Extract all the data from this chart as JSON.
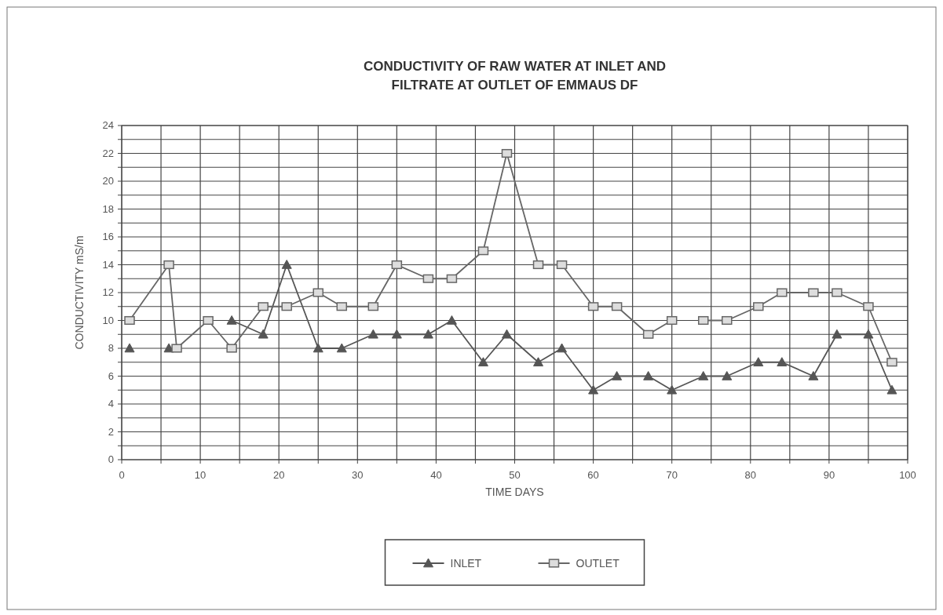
{
  "chart_data": {
    "type": "line",
    "title": "CONDUCTIVITY OF RAW WATER AT INLET AND\nFILTRATE AT OUTLET OF EMMAUS DF",
    "xlabel": "TIME DAYS",
    "ylabel": "CONDUCTIVITY mS/m",
    "xlim": [
      0,
      100
    ],
    "ylim": [
      0,
      24
    ],
    "xticks": [
      0,
      {
        "value": 5,
        "label": null
      },
      10,
      {
        "value": 15,
        "label": null
      },
      20,
      {
        "value": 25,
        "label": null
      },
      30,
      {
        "value": 35,
        "label": null
      },
      40,
      {
        "value": 45,
        "label": null
      },
      50,
      {
        "value": 55,
        "label": null
      },
      60,
      {
        "value": 65,
        "label": null
      },
      70,
      {
        "value": 75,
        "label": null
      },
      80,
      {
        "value": 85,
        "label": null
      },
      90,
      {
        "value": 95,
        "label": null
      },
      100
    ],
    "yticks": [
      0,
      {
        "value": 1,
        "label": null
      },
      2,
      {
        "value": 3,
        "label": null
      },
      4,
      {
        "value": 5,
        "label": null
      },
      6,
      {
        "value": 7,
        "label": null
      },
      8,
      {
        "value": 9,
        "label": null
      },
      10,
      {
        "value": 11,
        "label": null
      },
      12,
      {
        "value": 13,
        "label": null
      },
      14,
      {
        "value": 15,
        "label": null
      },
      16,
      {
        "value": 17,
        "label": null
      },
      18,
      {
        "value": 19,
        "label": null
      },
      20,
      {
        "value": 21,
        "label": null
      },
      22,
      {
        "value": 23,
        "label": null
      },
      24
    ],
    "grid": true,
    "legend": "bottom",
    "line_style": "solid",
    "series": [
      {
        "name": "INLET",
        "color": "#555555",
        "marker": "triangle",
        "x": [
          1,
          3,
          6,
          10,
          14,
          18,
          21,
          25,
          28,
          32,
          35,
          39,
          42,
          46,
          49,
          53,
          56,
          60,
          63,
          67,
          70,
          74,
          77,
          81,
          84,
          88,
          91,
          95,
          98
        ],
        "values": [
          8,
          null,
          8,
          null,
          10,
          9,
          14,
          8,
          8,
          9,
          9,
          9,
          10,
          7,
          9,
          7,
          8,
          5,
          6,
          6,
          5,
          6,
          6,
          7,
          7,
          6,
          9,
          9,
          5
        ]
      },
      {
        "name": "OUTLET",
        "color": "#666666",
        "marker": "square",
        "x": [
          1,
          6,
          7,
          11,
          14,
          18,
          21,
          25,
          28,
          32,
          35,
          39,
          42,
          46,
          49,
          53,
          56,
          60,
          63,
          67,
          70,
          72,
          74,
          77,
          81,
          84,
          88,
          91,
          95,
          98
        ],
        "values": [
          10,
          14,
          8,
          10,
          8,
          11,
          11,
          12,
          11,
          11,
          14,
          13,
          13,
          15,
          22,
          14,
          14,
          11,
          11,
          9,
          10,
          null,
          10,
          10,
          11,
          12,
          12,
          12,
          11,
          7
        ]
      }
    ]
  }
}
